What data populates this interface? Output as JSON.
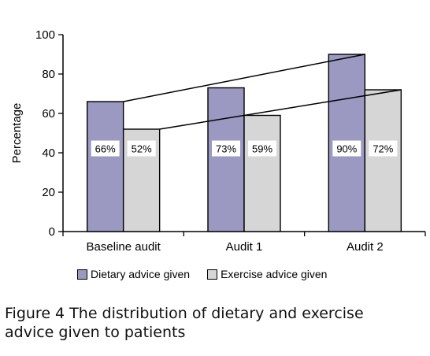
{
  "chart_data": {
    "type": "bar",
    "categories": [
      "Baseline audit",
      "Audit 1",
      "Audit 2"
    ],
    "series": [
      {
        "name": "Dietary advice given",
        "values": [
          66,
          73,
          90
        ],
        "labels": [
          "66%",
          "73%",
          "90%"
        ],
        "color": "#9b98c2"
      },
      {
        "name": "Exercise advice given",
        "values": [
          52,
          59,
          72
        ],
        "labels": [
          "52%",
          "59%",
          "72%"
        ],
        "color": "#d6d6d6"
      }
    ],
    "ylabel": "Percentage",
    "ylim": [
      0,
      100
    ],
    "yticks": [
      0,
      20,
      40,
      60,
      80,
      100
    ],
    "trend_lines": "connect top of each series from Baseline audit to Audit 2",
    "legend_position": "bottom"
  },
  "caption": {
    "line1": "Figure 4  The distribution of dietary and exercise",
    "line2": "advice given to patients"
  }
}
